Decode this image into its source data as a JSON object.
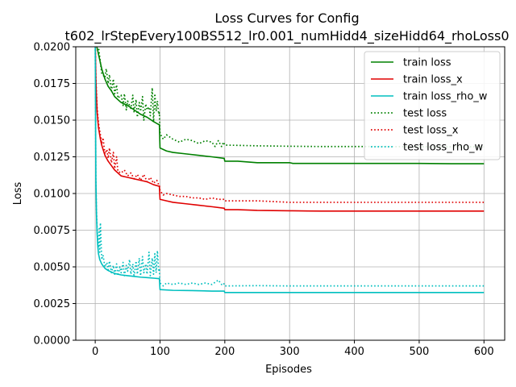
{
  "chart_data": {
    "type": "line",
    "title": "Loss Curves for Config",
    "subtitle": "t602_lrStepEvery100BS512_lr0.001_numHidd4_sizeHidd64_rhoLoss0",
    "xlabel": "Episodes",
    "ylabel": "Loss",
    "xlim": [
      -30,
      632
    ],
    "ylim": [
      0.0,
      0.02
    ],
    "xticks": [
      0,
      100,
      200,
      300,
      400,
      500,
      600
    ],
    "xtick_labels": [
      "0",
      "100",
      "200",
      "300",
      "400",
      "500",
      "600"
    ],
    "yticks": [
      0.0,
      0.0025,
      0.005,
      0.0075,
      0.01,
      0.0125,
      0.015,
      0.0175,
      0.02
    ],
    "ytick_labels": [
      "0.0000",
      "0.0025",
      "0.0050",
      "0.0075",
      "0.0100",
      "0.0125",
      "0.0150",
      "0.0175",
      "0.0200"
    ],
    "grid": true,
    "legend_position": "top-right",
    "series": [
      {
        "name": "train loss",
        "color": "#008000",
        "style": "solid",
        "x": [
          0,
          5,
          10,
          15,
          20,
          25,
          30,
          40,
          50,
          60,
          70,
          80,
          90,
          98,
          99,
          100,
          105,
          110,
          120,
          140,
          160,
          180,
          198,
          199,
          200,
          220,
          250,
          300,
          305,
          350,
          400,
          450,
          500,
          550,
          600
        ],
        "y": [
          0.0205,
          0.0195,
          0.0185,
          0.0178,
          0.0173,
          0.017,
          0.0166,
          0.0162,
          0.016,
          0.0157,
          0.0154,
          0.0152,
          0.0149,
          0.0147,
          0.0147,
          0.0131,
          0.013,
          0.0129,
          0.0128,
          0.0127,
          0.0126,
          0.0125,
          0.0124,
          0.0124,
          0.0122,
          0.0122,
          0.0121,
          0.0121,
          0.01205,
          0.01205,
          0.01205,
          0.01205,
          0.01205,
          0.01203,
          0.01203
        ]
      },
      {
        "name": "train loss_x",
        "color": "#e00000",
        "style": "solid",
        "x": [
          0,
          1,
          2,
          3,
          5,
          8,
          10,
          15,
          20,
          25,
          30,
          40,
          50,
          60,
          70,
          80,
          90,
          98,
          99,
          100,
          110,
          120,
          140,
          160,
          180,
          198,
          199,
          200,
          220,
          250,
          300,
          305,
          350,
          400,
          450,
          500,
          550,
          600
        ],
        "y": [
          0.0205,
          0.0178,
          0.0165,
          0.0155,
          0.0145,
          0.0137,
          0.0133,
          0.0126,
          0.0122,
          0.0119,
          0.0116,
          0.0112,
          0.0111,
          0.011,
          0.0109,
          0.0108,
          0.0106,
          0.0105,
          0.0105,
          0.0096,
          0.0095,
          0.0094,
          0.0093,
          0.0092,
          0.0091,
          0.009,
          0.009,
          0.0089,
          0.0089,
          0.00885,
          0.00882,
          0.00882,
          0.0088,
          0.0088,
          0.0088,
          0.0088,
          0.0088,
          0.0088
        ]
      },
      {
        "name": "train loss_rho_w",
        "color": "#00bfbf",
        "style": "solid",
        "x": [
          0,
          0.5,
          1,
          2,
          3,
          4,
          5,
          7,
          10,
          15,
          20,
          25,
          30,
          40,
          50,
          60,
          70,
          80,
          90,
          98,
          99,
          100,
          120,
          150,
          180,
          198,
          199,
          200,
          250,
          300,
          350,
          400,
          450,
          500,
          550,
          600
        ],
        "y": [
          0.0205,
          0.016,
          0.011,
          0.0085,
          0.0072,
          0.0064,
          0.0059,
          0.0055,
          0.0052,
          0.0049,
          0.00475,
          0.00465,
          0.00455,
          0.00445,
          0.0044,
          0.00435,
          0.0043,
          0.00427,
          0.00423,
          0.0042,
          0.0042,
          0.00345,
          0.0034,
          0.00338,
          0.00335,
          0.00335,
          0.00335,
          0.00325,
          0.00325,
          0.00325,
          0.00325,
          0.00325,
          0.00325,
          0.00325,
          0.00325,
          0.00325
        ]
      },
      {
        "name": "test loss",
        "color": "#008000",
        "style": "dotted",
        "x": [
          0,
          5,
          10,
          15,
          17,
          20,
          22,
          25,
          28,
          30,
          33,
          35,
          40,
          43,
          45,
          48,
          50,
          55,
          58,
          60,
          63,
          65,
          68,
          70,
          73,
          75,
          78,
          80,
          83,
          85,
          88,
          90,
          92,
          94,
          96,
          98,
          99,
          100,
          105,
          110,
          120,
          130,
          140,
          150,
          160,
          170,
          180,
          185,
          190,
          195,
          198,
          199,
          200,
          250,
          300,
          350,
          400,
          450,
          500,
          550,
          600
        ],
        "y": [
          0.0205,
          0.02,
          0.0182,
          0.0179,
          0.0185,
          0.0175,
          0.0181,
          0.017,
          0.0178,
          0.0168,
          0.0174,
          0.0165,
          0.0167,
          0.016,
          0.0168,
          0.0157,
          0.0163,
          0.0158,
          0.0167,
          0.0155,
          0.0164,
          0.0152,
          0.0162,
          0.0156,
          0.0166,
          0.015,
          0.0161,
          0.0157,
          0.0159,
          0.0153,
          0.0172,
          0.0149,
          0.0168,
          0.0156,
          0.0163,
          0.0154,
          0.0155,
          0.0141,
          0.0137,
          0.014,
          0.0137,
          0.0135,
          0.0137,
          0.0136,
          0.0134,
          0.0136,
          0.0135,
          0.0132,
          0.0136,
          0.0132,
          0.0135,
          0.0134,
          0.0133,
          0.01325,
          0.01322,
          0.0132,
          0.0132,
          0.0132,
          0.01318,
          0.01318,
          0.01318
        ]
      },
      {
        "name": "test loss_x",
        "color": "#e00000",
        "style": "dotted",
        "x": [
          0,
          1,
          2,
          3,
          5,
          8,
          10,
          12,
          15,
          18,
          20,
          22,
          25,
          28,
          30,
          33,
          35,
          40,
          45,
          50,
          55,
          60,
          65,
          70,
          75,
          80,
          85,
          90,
          95,
          98,
          99,
          100,
          105,
          110,
          120,
          130,
          140,
          150,
          160,
          170,
          180,
          190,
          198,
          199,
          200,
          250,
          300,
          350,
          400,
          450,
          500,
          550,
          600
        ],
        "y": [
          0.0205,
          0.018,
          0.0168,
          0.0158,
          0.0148,
          0.014,
          0.0134,
          0.0138,
          0.0127,
          0.013,
          0.0124,
          0.0131,
          0.0121,
          0.0128,
          0.0117,
          0.0125,
          0.0115,
          0.0114,
          0.0116,
          0.0112,
          0.0114,
          0.011,
          0.0113,
          0.0109,
          0.0113,
          0.0108,
          0.0111,
          0.0107,
          0.0109,
          0.0106,
          0.0106,
          0.0102,
          0.0099,
          0.01,
          0.0099,
          0.0098,
          0.0098,
          0.0097,
          0.0097,
          0.0096,
          0.0097,
          0.0096,
          0.0096,
          0.0096,
          0.0095,
          0.0095,
          0.0094,
          0.0094,
          0.0094,
          0.0094,
          0.0094,
          0.0094,
          0.0094
        ]
      },
      {
        "name": "test loss_rho_w",
        "color": "#00bfbf",
        "style": "dotted",
        "x": [
          0,
          0.5,
          1,
          2,
          3,
          4,
          5,
          6,
          7,
          8,
          10,
          12,
          15,
          18,
          20,
          22,
          25,
          28,
          30,
          33,
          35,
          38,
          40,
          43,
          45,
          48,
          50,
          53,
          55,
          58,
          60,
          63,
          65,
          68,
          70,
          73,
          75,
          78,
          80,
          83,
          85,
          88,
          90,
          92,
          94,
          96,
          98,
          99,
          100,
          105,
          110,
          120,
          130,
          140,
          150,
          160,
          170,
          180,
          190,
          195,
          198,
          199,
          200,
          250,
          300,
          350,
          400,
          450,
          500,
          550,
          600
        ],
        "y": [
          0.0205,
          0.016,
          0.011,
          0.0088,
          0.0075,
          0.0068,
          0.0063,
          0.0076,
          0.006,
          0.008,
          0.0055,
          0.0058,
          0.005,
          0.0053,
          0.0048,
          0.0054,
          0.0046,
          0.0051,
          0.0045,
          0.0052,
          0.0044,
          0.005,
          0.0046,
          0.0053,
          0.0044,
          0.0051,
          0.0047,
          0.0055,
          0.0045,
          0.0052,
          0.0043,
          0.0054,
          0.0045,
          0.0056,
          0.0044,
          0.0057,
          0.0046,
          0.0052,
          0.0045,
          0.006,
          0.0044,
          0.0056,
          0.0045,
          0.0059,
          0.0046,
          0.0061,
          0.0047,
          0.0048,
          0.0039,
          0.0037,
          0.0039,
          0.0038,
          0.0039,
          0.0038,
          0.0039,
          0.0038,
          0.0039,
          0.0038,
          0.0041,
          0.0038,
          0.0039,
          0.0038,
          0.0037,
          0.00372,
          0.0037,
          0.0037,
          0.0037,
          0.0037,
          0.0037,
          0.0037,
          0.0037
        ]
      }
    ]
  }
}
